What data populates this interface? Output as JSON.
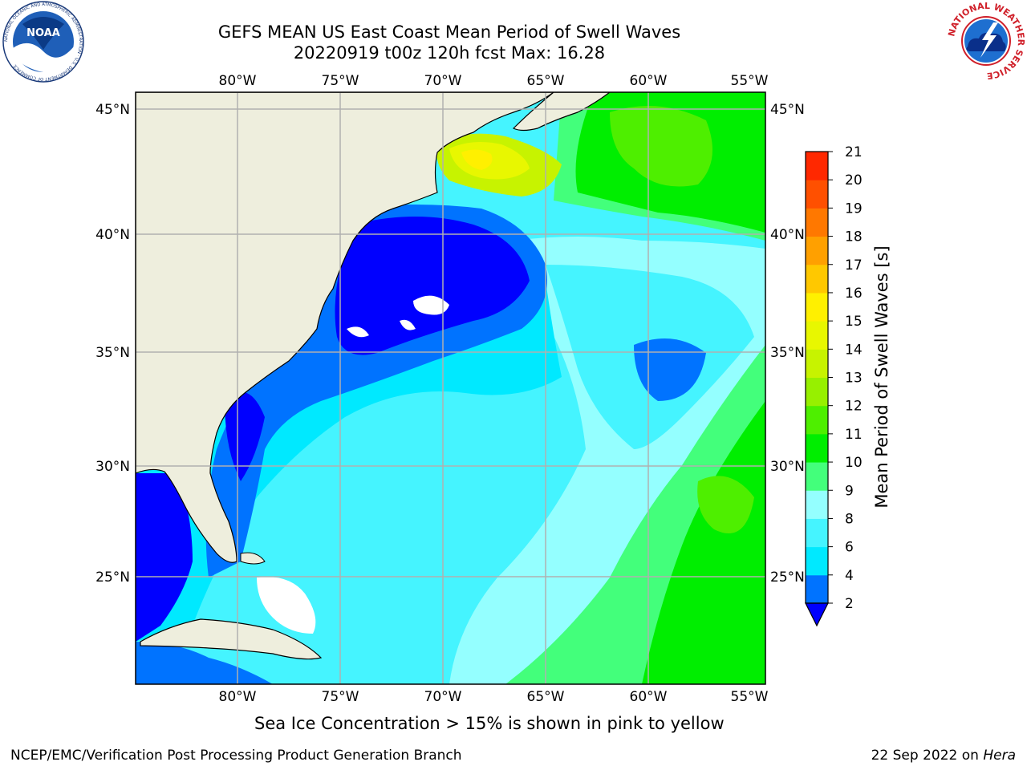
{
  "header": {
    "title_line1": "GEFS MEAN US East Coast Mean Period of Swell Waves",
    "title_line2": "20220919 t00z 120h fcst   Max: 16.28"
  },
  "logos": {
    "noaa_text": "NOAA",
    "noaa_ring_text": "NATIONAL OCEANIC AND ATMOSPHERIC ADMINISTRATION · U.S. DEPARTMENT OF COMMERCE",
    "nws_ring_text": "NATIONAL WEATHER SERVICE"
  },
  "map": {
    "lon_labels": [
      "80°W",
      "75°W",
      "70°W",
      "65°W",
      "60°W",
      "55°W"
    ],
    "lat_labels": [
      "45°N",
      "40°N",
      "35°N",
      "30°N",
      "25°N"
    ],
    "colors": {
      "land": "#eeeedd",
      "grid": "#b0b0b0",
      "missing": "#ffffff"
    }
  },
  "colorbar": {
    "title": "Mean Period of Swell Waves [s]",
    "ticks": [
      "2",
      "4",
      "6",
      "8",
      "9",
      "10",
      "11",
      "12",
      "13",
      "14",
      "15",
      "16",
      "17",
      "18",
      "19",
      "20",
      "21"
    ],
    "extend_color": "#0000ff",
    "colors": [
      "#0073ff",
      "#00e9ff",
      "#45f4ff",
      "#94ffff",
      "#43ff7b",
      "#00ee00",
      "#4eef00",
      "#97f000",
      "#c7f300",
      "#e8f700",
      "#fff000",
      "#ffc800",
      "#ffa000",
      "#ff7800",
      "#ff5000",
      "#ff2800"
    ]
  },
  "footer": {
    "note": "Sea Ice Concentration > 15% is shown in pink to yellow",
    "left": "NCEP/EMC/Verification Post Processing Product Generation Branch",
    "right_date": "22 Sep 2022 on ",
    "right_host": "Hera"
  }
}
